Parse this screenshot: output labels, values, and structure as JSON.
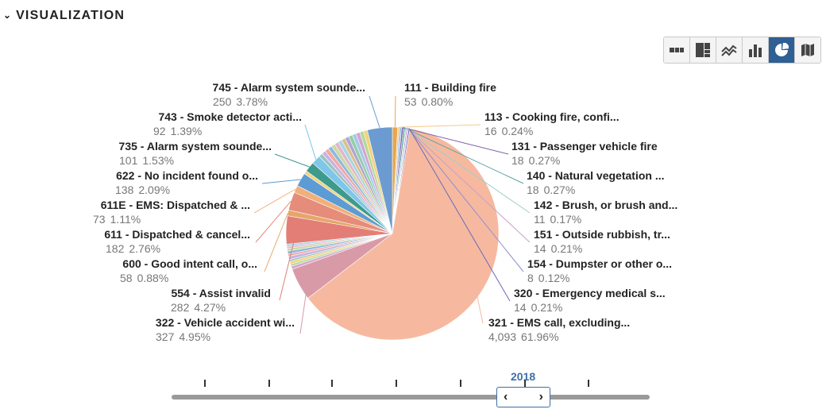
{
  "section": {
    "title": "VISUALIZATION",
    "expand_icon": "chevron-down-icon"
  },
  "toolbar": {
    "buttons": [
      {
        "icon": "table-icon",
        "active": false
      },
      {
        "icon": "treemap-icon",
        "active": false
      },
      {
        "icon": "line-chart-icon",
        "active": false
      },
      {
        "icon": "bar-chart-icon",
        "active": false
      },
      {
        "icon": "pie-chart-icon",
        "active": true
      },
      {
        "icon": "map-icon",
        "active": false
      }
    ],
    "active_color": "#2f5f93"
  },
  "chart_data": {
    "type": "pie",
    "slices": [
      {
        "name": "111 - Building fire",
        "count": "53",
        "pct": "0.80%",
        "value": 0.8,
        "color": "#e8a64a"
      },
      {
        "name": "113 - Cooking fire, confi...",
        "count": "16",
        "pct": "0.24%",
        "value": 0.24,
        "color": "#f2c98a"
      },
      {
        "name": "131 - Passenger vehicle fire",
        "count": "18",
        "pct": "0.27%",
        "value": 0.27,
        "color": "#7d5ea8"
      },
      {
        "name": "140 - Natural vegetation ...",
        "count": "18",
        "pct": "0.27%",
        "value": 0.27,
        "color": "#5aa5a0"
      },
      {
        "name": "142 - Brush, or brush and...",
        "count": "11",
        "pct": "0.17%",
        "value": 0.17,
        "color": "#9fd0cb"
      },
      {
        "name": "151 - Outside rubbish, tr...",
        "count": "14",
        "pct": "0.21%",
        "value": 0.21,
        "color": "#c9a0c8"
      },
      {
        "name": "154 - Dumpster or other o...",
        "count": "8",
        "pct": "0.12%",
        "value": 0.12,
        "color": "#8e8ed0"
      },
      {
        "name": "320 - Emergency medical s...",
        "count": "14",
        "pct": "0.21%",
        "value": 0.21,
        "color": "#6a6ab8"
      },
      {
        "name": "321 - EMS call, excluding...",
        "count": "4,093",
        "pct": "61.96%",
        "value": 61.96,
        "color": "#f6b9a0"
      },
      {
        "name": "322 - Vehicle accident wi...",
        "count": "327",
        "pct": "4.95%",
        "value": 4.95,
        "color": "#d99aa8"
      },
      {
        "name": "554 - Assist invalid",
        "count": "282",
        "pct": "4.27%",
        "value": 4.27,
        "color": "#e37e76"
      },
      {
        "name": "600 - Good intent call, o...",
        "count": "58",
        "pct": "0.88%",
        "value": 0.88,
        "color": "#e6a66a"
      },
      {
        "name": "611 - Dispatched & cancel...",
        "count": "182",
        "pct": "2.76%",
        "value": 2.76,
        "color": "#e58c7a"
      },
      {
        "name": "611E - EMS: Dispatched & ...",
        "count": "73",
        "pct": "1.11%",
        "value": 1.11,
        "color": "#f0b07a"
      },
      {
        "name": "622 - No incident found o...",
        "count": "138",
        "pct": "2.09%",
        "value": 2.09,
        "color": "#5d9bd4"
      },
      {
        "name": "735 - Alarm system sounde...",
        "count": "101",
        "pct": "1.53%",
        "value": 1.53,
        "color": "#3e9a8c"
      },
      {
        "name": "743 - Smoke detector acti...",
        "count": "92",
        "pct": "1.39%",
        "value": 1.39,
        "color": "#7fc6e8"
      },
      {
        "name": "745 - Alarm system sounde...",
        "count": "250",
        "pct": "3.78%",
        "value": 3.78,
        "color": "#6b9bd1"
      }
    ],
    "other_remainder_pct": 12.99,
    "other_colors": [
      "#a7c7e7",
      "#d4a5d0",
      "#b5d99c",
      "#f3d27a",
      "#9dc3c1",
      "#c7b3e0",
      "#f2a8a1",
      "#8fb8de",
      "#c9d9a5",
      "#e3b5c9",
      "#a8d5e2",
      "#d8c08f",
      "#b0a4d4",
      "#92cfa8"
    ]
  },
  "slider": {
    "year": "2018",
    "prev_label": "‹",
    "next_label": "›",
    "prev_icon": "chevron-left-icon",
    "next_icon": "chevron-right-icon"
  }
}
